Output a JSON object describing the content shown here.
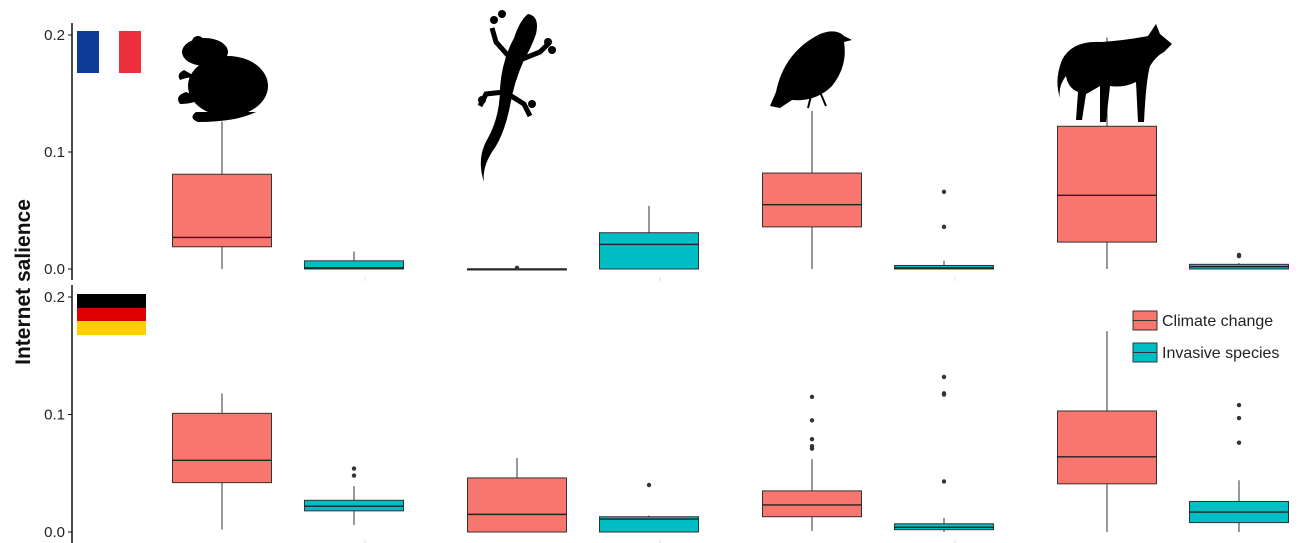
{
  "chart_data": {
    "type": "box",
    "ylabel": "Internet salience",
    "yticks": [
      0.0,
      0.1,
      0.2
    ],
    "ytick_labels": [
      "0.0",
      "0.1",
      "0.2"
    ],
    "ylim": [
      0,
      0.2
    ],
    "taxa": [
      "amphibians",
      "reptiles",
      "birds",
      "mammals"
    ],
    "countries": [
      "France",
      "Germany"
    ],
    "legend": [
      {
        "label": "Climate change",
        "color": "#F8766D"
      },
      {
        "label": "Invasive species",
        "color": "#00BFC4"
      }
    ],
    "panels": [
      {
        "country": "France",
        "taxon": "amphibians",
        "boxes": [
          {
            "series": "Climate change",
            "min": 0.0,
            "q1": 0.019,
            "median": 0.027,
            "q3": 0.081,
            "max": 0.126,
            "outliers": []
          },
          {
            "series": "Invasive species",
            "min": 0.0,
            "q1": 0.0,
            "median": 0.001,
            "q3": 0.007,
            "max": 0.015,
            "outliers": []
          }
        ]
      },
      {
        "country": "France",
        "taxon": "reptiles",
        "boxes": [
          {
            "series": "Climate change",
            "min": 0.0,
            "q1": 0.0,
            "median": 0.0,
            "q3": 0.0,
            "max": 0.0,
            "outliers": [
              0.001
            ]
          },
          {
            "series": "Invasive species",
            "min": 0.0,
            "q1": 0.0,
            "median": 0.021,
            "q3": 0.031,
            "max": 0.054,
            "outliers": []
          }
        ]
      },
      {
        "country": "France",
        "taxon": "birds",
        "boxes": [
          {
            "series": "Climate change",
            "min": 0.0,
            "q1": 0.036,
            "median": 0.055,
            "q3": 0.082,
            "max": 0.135,
            "outliers": []
          },
          {
            "series": "Invasive species",
            "min": 0.0,
            "q1": 0.0,
            "median": 0.001,
            "q3": 0.003,
            "max": 0.007,
            "outliers": [
              0.036,
              0.066
            ]
          }
        ]
      },
      {
        "country": "France",
        "taxon": "mammals",
        "boxes": [
          {
            "series": "Climate change",
            "min": 0.0,
            "q1": 0.023,
            "median": 0.063,
            "q3": 0.122,
            "max": 0.198,
            "outliers": []
          },
          {
            "series": "Invasive species",
            "min": 0.0,
            "q1": 0.0,
            "median": 0.002,
            "q3": 0.004,
            "max": 0.005,
            "outliers": [
              0.011,
              0.012
            ]
          }
        ]
      },
      {
        "country": "Germany",
        "taxon": "amphibians",
        "boxes": [
          {
            "series": "Climate change",
            "min": 0.002,
            "q1": 0.042,
            "median": 0.061,
            "q3": 0.101,
            "max": 0.118,
            "outliers": []
          },
          {
            "series": "Invasive species",
            "min": 0.006,
            "q1": 0.018,
            "median": 0.022,
            "q3": 0.027,
            "max": 0.039,
            "outliers": [
              0.048,
              0.054
            ]
          }
        ]
      },
      {
        "country": "Germany",
        "taxon": "reptiles",
        "boxes": [
          {
            "series": "Climate change",
            "min": 0.0,
            "q1": 0.0,
            "median": 0.015,
            "q3": 0.046,
            "max": 0.063,
            "outliers": []
          },
          {
            "series": "Invasive species",
            "min": 0.0,
            "q1": 0.0,
            "median": 0.011,
            "q3": 0.013,
            "max": 0.014,
            "outliers": [
              0.04
            ]
          }
        ]
      },
      {
        "country": "Germany",
        "taxon": "birds",
        "boxes": [
          {
            "series": "Climate change",
            "min": 0.001,
            "q1": 0.013,
            "median": 0.023,
            "q3": 0.035,
            "max": 0.062,
            "outliers": [
              0.071,
              0.073,
              0.079,
              0.095,
              0.115
            ]
          },
          {
            "series": "Invasive species",
            "min": 0.0,
            "q1": 0.002,
            "median": 0.004,
            "q3": 0.007,
            "max": 0.012,
            "outliers": [
              0.043,
              0.117,
              0.118,
              0.132
            ]
          }
        ]
      },
      {
        "country": "Germany",
        "taxon": "mammals",
        "boxes": [
          {
            "series": "Climate change",
            "min": 0.0,
            "q1": 0.041,
            "median": 0.064,
            "q3": 0.103,
            "max": 0.171,
            "outliers": []
          },
          {
            "series": "Invasive species",
            "min": 0.0,
            "q1": 0.008,
            "median": 0.017,
            "q3": 0.026,
            "max": 0.044,
            "outliers": [
              0.076,
              0.097,
              0.108
            ]
          }
        ]
      }
    ]
  },
  "icons": {
    "taxon_icons": [
      "frog-icon",
      "gecko-icon",
      "bird-icon",
      "wolf-icon"
    ],
    "flags": [
      {
        "country": "France",
        "stripes": [
          "#0E3A9A",
          "#FFFFFF",
          "#EE2F3C"
        ],
        "orientation": "vertical"
      },
      {
        "country": "Germany",
        "stripes": [
          "#000000",
          "#DD0000",
          "#FFCE00"
        ],
        "orientation": "horizontal"
      }
    ]
  }
}
